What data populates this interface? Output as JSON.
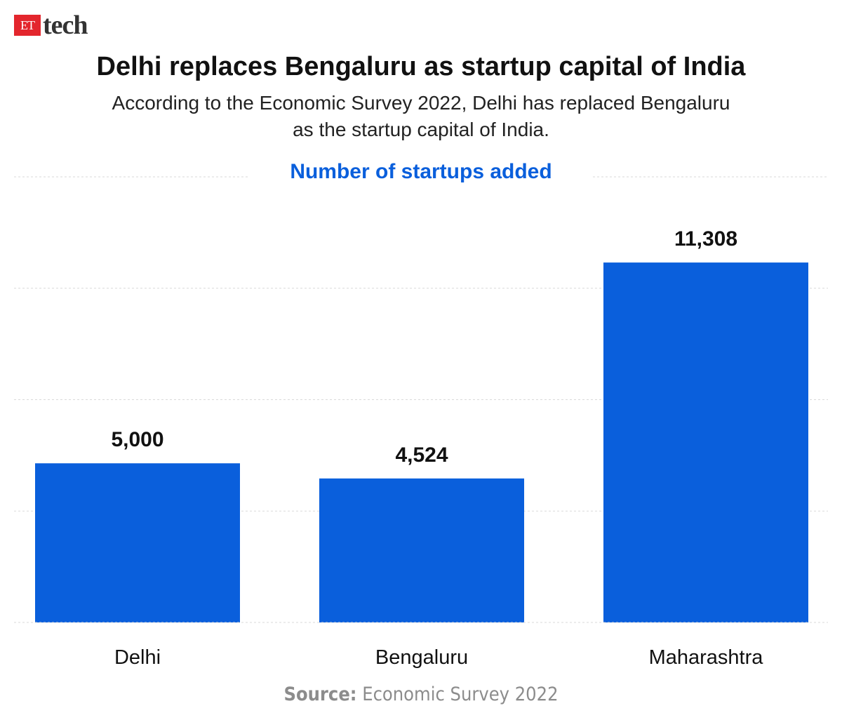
{
  "brand": {
    "et": "ET",
    "tech": "tech"
  },
  "header": {
    "title": "Delhi replaces Bengaluru as startup capital of India",
    "subtitle_line1": "According to the Economic Survey 2022, Delhi has replaced Bengaluru",
    "subtitle_line2": "as the startup capital of India."
  },
  "chart_data": {
    "type": "bar",
    "title": "Number of startups added",
    "categories": [
      "Delhi",
      "Bengaluru",
      "Maharashtra"
    ],
    "values": [
      5000,
      4524,
      11308
    ],
    "value_labels": [
      "5,000",
      "4,524",
      "11,308"
    ],
    "xlabel": "",
    "ylabel": "",
    "ylim": [
      0,
      14000
    ],
    "y_axis_visible": false,
    "grid": true,
    "bar_color": "#0a5fdc"
  },
  "source": {
    "label": "Source:",
    "text": " Economic Survey 2022"
  },
  "colors": {
    "accent": "#0a5fdc",
    "brand_red": "#e3262d",
    "grid": "#d9d9d9"
  }
}
